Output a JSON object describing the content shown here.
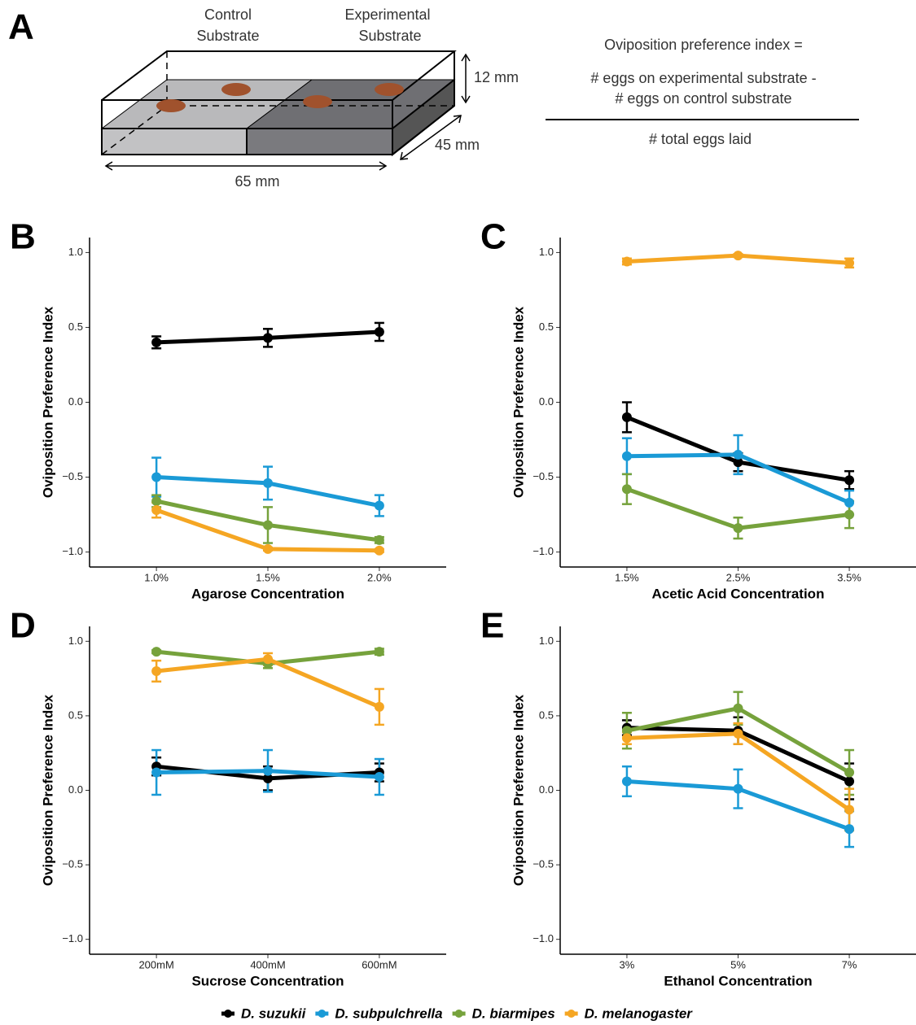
{
  "diagram": {
    "panel": "A",
    "control": [
      "Control",
      "Substrate"
    ],
    "experimental": [
      "Experimental",
      "Substrate"
    ],
    "height": "12 mm",
    "depth": "45 mm",
    "width": "65 mm",
    "formula": {
      "lhs": "Oviposition preference index =",
      "numerator": [
        "# eggs on experimental substrate -",
        "# eggs on control substrate"
      ],
      "denominator": "# total eggs laid"
    }
  },
  "chart_data": [
    {
      "type": "line",
      "panel": "B",
      "xlabel": "Agarose Concentration",
      "ylabel": "Oviposition Preference Index",
      "categories": [
        "1.0%",
        "1.5%",
        "2.0%"
      ],
      "ylim": [
        -1.1,
        1.1
      ],
      "yticks": [
        {
          "value": -1,
          "label": "−1.0"
        },
        {
          "value": -0.5,
          "label": "−0.5"
        },
        {
          "value": 0,
          "label": "0.0"
        },
        {
          "value": 0.5,
          "label": "0.5"
        },
        {
          "value": 1,
          "label": "1.0"
        }
      ],
      "series": [
        {
          "name": "D. suzukii",
          "color": "#000000",
          "values": [
            0.4,
            0.43,
            0.47
          ],
          "errors": [
            0.04,
            0.06,
            0.06
          ]
        },
        {
          "name": "D. subpulchrella",
          "color": "#1a9ad6",
          "values": [
            -0.5,
            -0.54,
            -0.69
          ],
          "errors": [
            0.13,
            0.11,
            0.07
          ]
        },
        {
          "name": "D. biarmipes",
          "color": "#76a23c",
          "values": [
            -0.66,
            -0.82,
            -0.92
          ],
          "errors": [
            0.04,
            0.12,
            0.02
          ]
        },
        {
          "name": "D. melanogaster",
          "color": "#f5a623",
          "values": [
            -0.72,
            -0.98,
            -0.99
          ],
          "errors": [
            0.05,
            0.01,
            0.01
          ]
        }
      ]
    },
    {
      "type": "line",
      "panel": "C",
      "xlabel": "Acetic Acid Concentration",
      "ylabel": "Oviposition Preference Index",
      "categories": [
        "1.5%",
        "2.5%",
        "3.5%"
      ],
      "ylim": [
        -1.1,
        1.1
      ],
      "yticks": [
        {
          "value": -1,
          "label": "−1.0"
        },
        {
          "value": -0.5,
          "label": "−0.5"
        },
        {
          "value": 0,
          "label": "0.0"
        },
        {
          "value": 0.5,
          "label": "0.5"
        },
        {
          "value": 1,
          "label": "1.0"
        }
      ],
      "series": [
        {
          "name": "D. suzukii",
          "color": "#000000",
          "values": [
            -0.1,
            -0.4,
            -0.52
          ],
          "errors": [
            0.1,
            0.06,
            0.06
          ]
        },
        {
          "name": "D. subpulchrella",
          "color": "#1a9ad6",
          "values": [
            -0.36,
            -0.35,
            -0.67
          ],
          "errors": [
            0.12,
            0.13,
            0.08
          ]
        },
        {
          "name": "D. biarmipes",
          "color": "#76a23c",
          "values": [
            -0.58,
            -0.84,
            -0.75
          ],
          "errors": [
            0.1,
            0.07,
            0.09
          ]
        },
        {
          "name": "D. melanogaster",
          "color": "#f5a623",
          "values": [
            0.94,
            0.98,
            0.93
          ],
          "errors": [
            0.02,
            0.01,
            0.03
          ]
        }
      ]
    },
    {
      "type": "line",
      "panel": "D",
      "xlabel": "Sucrose Concentration",
      "ylabel": "Oviposition Preference Index",
      "categories": [
        "200mM",
        "400mM",
        "600mM"
      ],
      "ylim": [
        -1.1,
        1.1
      ],
      "yticks": [
        {
          "value": -1,
          "label": "−1.0"
        },
        {
          "value": -0.5,
          "label": "−0.5"
        },
        {
          "value": 0,
          "label": "0.0"
        },
        {
          "value": 0.5,
          "label": "0.5"
        },
        {
          "value": 1,
          "label": "1.0"
        }
      ],
      "series": [
        {
          "name": "D. suzukii",
          "color": "#000000",
          "values": [
            0.16,
            0.08,
            0.12
          ],
          "errors": [
            0.06,
            0.08,
            0.06
          ]
        },
        {
          "name": "D. subpulchrella",
          "color": "#1a9ad6",
          "values": [
            0.12,
            0.13,
            0.09
          ],
          "errors": [
            0.15,
            0.14,
            0.12
          ]
        },
        {
          "name": "D. biarmipes",
          "color": "#76a23c",
          "values": [
            0.93,
            0.85,
            0.93
          ],
          "errors": [
            0.01,
            0.03,
            0.02
          ]
        },
        {
          "name": "D. melanogaster",
          "color": "#f5a623",
          "values": [
            0.8,
            0.88,
            0.56
          ],
          "errors": [
            0.07,
            0.04,
            0.12
          ]
        }
      ]
    },
    {
      "type": "line",
      "panel": "E",
      "xlabel": "Ethanol Concentration",
      "ylabel": "Oviposition Preference Index",
      "categories": [
        "3%",
        "5%",
        "7%"
      ],
      "ylim": [
        -1.1,
        1.1
      ],
      "yticks": [
        {
          "value": -1,
          "label": "−1.0"
        },
        {
          "value": -0.5,
          "label": "−0.5"
        },
        {
          "value": 0,
          "label": "0.0"
        },
        {
          "value": 0.5,
          "label": "0.5"
        },
        {
          "value": 1,
          "label": "1.0"
        }
      ],
      "series": [
        {
          "name": "D. suzukii",
          "color": "#000000",
          "values": [
            0.42,
            0.4,
            0.06
          ],
          "errors": [
            0.05,
            0.09,
            0.12
          ]
        },
        {
          "name": "D. subpulchrella",
          "color": "#1a9ad6",
          "values": [
            0.06,
            0.01,
            -0.26
          ],
          "errors": [
            0.1,
            0.13,
            0.12
          ]
        },
        {
          "name": "D. biarmipes",
          "color": "#76a23c",
          "values": [
            0.4,
            0.55,
            0.12
          ],
          "errors": [
            0.12,
            0.11,
            0.15
          ]
        },
        {
          "name": "D. melanogaster",
          "color": "#f5a623",
          "values": [
            0.35,
            0.38,
            -0.13
          ],
          "errors": [
            0.04,
            0.07,
            0.14
          ]
        }
      ]
    }
  ]
}
